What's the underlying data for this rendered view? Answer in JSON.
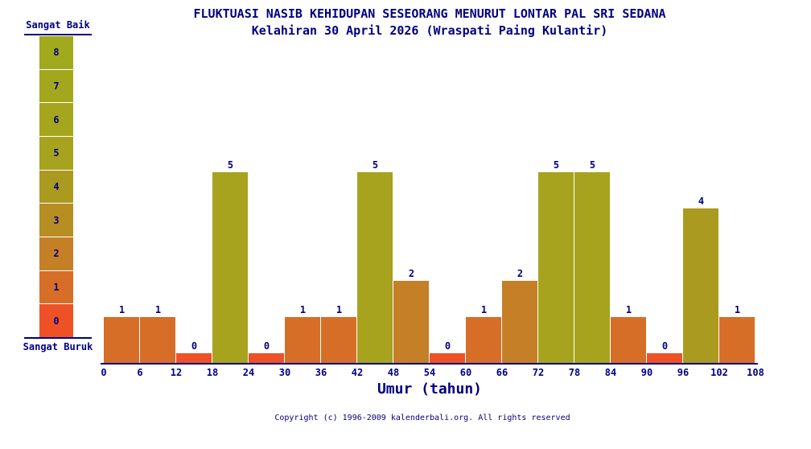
{
  "title": "FLUKTUASI NASIB KEHIDUPAN SESEORANG MENURUT LONTAR PAL SRI SEDANA",
  "subtitle": "Kelahiran 30 April 2026 (Wraspati Paing Kulantir)",
  "legend": {
    "top_label": "Sangat Baik",
    "bottom_label": "Sangat Buruk",
    "levels": [
      8,
      7,
      6,
      5,
      4,
      3,
      2,
      1,
      0
    ]
  },
  "chart_data": {
    "type": "bar",
    "bin_edges": [
      0,
      6,
      12,
      18,
      24,
      30,
      36,
      42,
      48,
      54,
      60,
      66,
      72,
      78,
      84,
      90,
      96,
      102,
      108
    ],
    "values": [
      1,
      1,
      0,
      5,
      0,
      1,
      1,
      5,
      2,
      0,
      1,
      2,
      5,
      5,
      1,
      0,
      4,
      1
    ],
    "xlabel": "Umur (tahun)",
    "ylim": [
      0,
      8
    ],
    "grid": false,
    "legend_position": "left",
    "value_colors": {
      "0": "#ee5126",
      "1": "#d76e27",
      "2": "#c57f26",
      "3": "#b78e22",
      "4": "#ab9a20",
      "5": "#a7a31f",
      "6": "#a5a51e",
      "7": "#a3a71e",
      "8": "#a1a91d"
    }
  },
  "footer": {
    "copyright": "Copyright (c) 1996-2009 kalenderbali.org. All rights reserved"
  },
  "colors": {
    "text": "#000080",
    "background": "#ffffff"
  }
}
